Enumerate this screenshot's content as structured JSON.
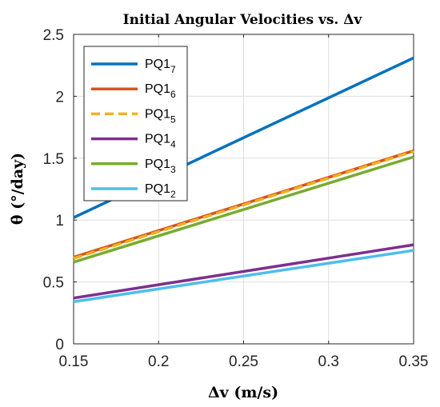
{
  "chart_data": {
    "type": "line",
    "title": "Initial Angular Velocities vs. Δv",
    "xlabel": "Δv (m/s)",
    "ylabel": "θ̇ (°/day)",
    "xlim": [
      0.15,
      0.35
    ],
    "ylim": [
      0,
      2.5
    ],
    "xticks": [
      "0.15",
      "0.2",
      "0.25",
      "0.3",
      "0.35"
    ],
    "yticks": [
      "0",
      "0.5",
      "1",
      "1.5",
      "2",
      "2.5"
    ],
    "grid": true,
    "legend_position": "top-left",
    "series": [
      {
        "name": "PQ1",
        "subscript": "7",
        "color": "#0072BD",
        "style": "solid",
        "x": [
          0.15,
          0.35
        ],
        "y": [
          1.02,
          2.31
        ]
      },
      {
        "name": "PQ1",
        "subscript": "6",
        "color": "#D95319",
        "style": "solid",
        "x": [
          0.15,
          0.35
        ],
        "y": [
          0.7,
          1.56
        ]
      },
      {
        "name": "PQ1",
        "subscript": "5",
        "color": "#EDB120",
        "style": "dashed",
        "x": [
          0.15,
          0.35
        ],
        "y": [
          0.69,
          1.555
        ]
      },
      {
        "name": "PQ1",
        "subscript": "4",
        "color": "#7E2F8E",
        "style": "solid",
        "x": [
          0.15,
          0.35
        ],
        "y": [
          0.37,
          0.8
        ]
      },
      {
        "name": "PQ1",
        "subscript": "3",
        "color": "#77AC30",
        "style": "solid",
        "x": [
          0.15,
          0.35
        ],
        "y": [
          0.66,
          1.51
        ]
      },
      {
        "name": "PQ1",
        "subscript": "2",
        "color": "#4DBEEE",
        "style": "solid",
        "x": [
          0.15,
          0.35
        ],
        "y": [
          0.34,
          0.755
        ]
      }
    ]
  }
}
